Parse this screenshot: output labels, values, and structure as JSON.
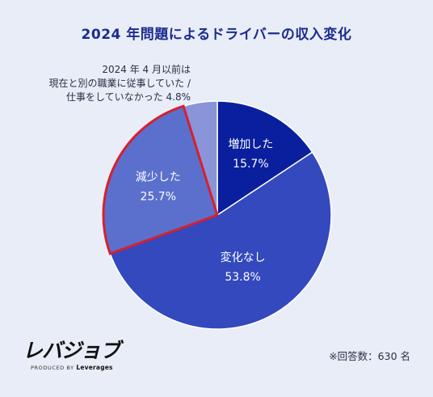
{
  "colors": {
    "background": "#e9edf7",
    "title": "#1b2b8f",
    "highlight_border": "#d6202e"
  },
  "chart_data": {
    "type": "pie",
    "title": "2024 年問題によるドライバーの収入変化",
    "start_angle_deg": 0,
    "direction": "clockwise",
    "slices": [
      {
        "label": "増加した",
        "value": 15.7,
        "display_value": "15.7%",
        "color": "#0a1f9e",
        "highlighted": false
      },
      {
        "label": "変化なし",
        "value": 53.8,
        "display_value": "53.8%",
        "color": "#3449bd",
        "highlighted": false
      },
      {
        "label": "減少した",
        "value": 25.7,
        "display_value": "25.7%",
        "color": "#5b6fcd",
        "highlighted": true
      },
      {
        "label": "2024 年 4 月以前は 現在と別の職業に従事していた / 仕事をしていなかった",
        "value": 4.8,
        "display_value": "4.8%",
        "color": "#8995d8",
        "highlighted": false
      }
    ]
  },
  "outside_label": {
    "line1": "2024 年 4 月以前は",
    "line2": "現在と別の職業に従事していた /",
    "line3": "仕事をしていなかった 4.8%"
  },
  "note": "※回答数：630 名",
  "logo": {
    "main": "レバジョブ",
    "sub_prefix": "PRODUCED BY",
    "sub_brand": "Leverages"
  }
}
